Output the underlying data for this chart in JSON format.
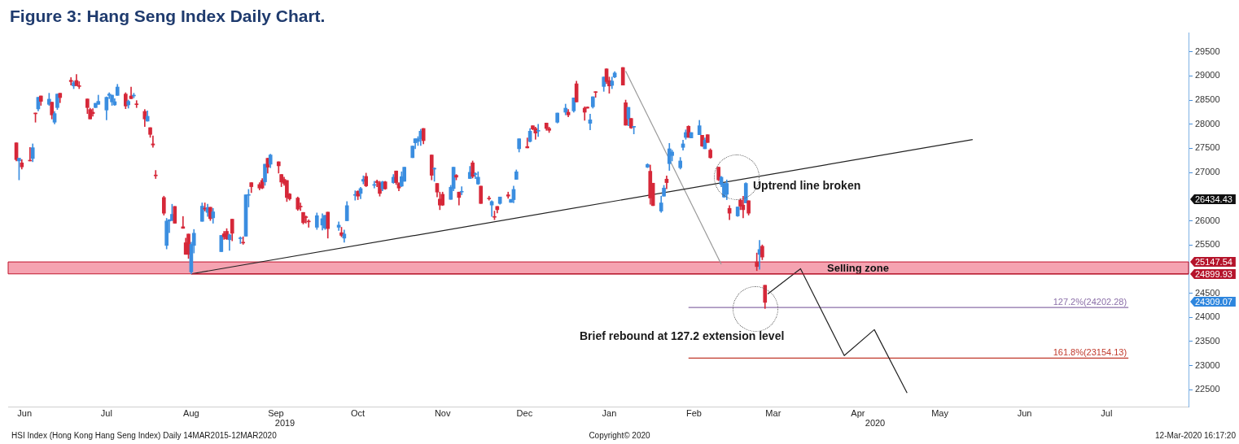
{
  "chart_data": {
    "type": "candlestick",
    "title": "Figure 3: Hang Seng Index Daily Chart.",
    "x": [
      "2019-06-12",
      "2019-06-13",
      "2019-06-14",
      "2019-06-17",
      "2019-06-18",
      "2019-06-19",
      "2019-06-20",
      "2019-06-21",
      "2019-06-24",
      "2019-06-25",
      "2019-06-26",
      "2019-06-27",
      "2019-06-28",
      "2019-07-02",
      "2019-07-03",
      "2019-07-04",
      "2019-07-05",
      "2019-07-08",
      "2019-07-09",
      "2019-07-10",
      "2019-07-11",
      "2019-07-12",
      "2019-07-15",
      "2019-07-16",
      "2019-07-17",
      "2019-07-18",
      "2019-07-19",
      "2019-07-22",
      "2019-07-23",
      "2019-07-24",
      "2019-07-25",
      "2019-07-26",
      "2019-07-29",
      "2019-07-30",
      "2019-07-31",
      "2019-08-01",
      "2019-08-02",
      "2019-08-05",
      "2019-08-06",
      "2019-08-07",
      "2019-08-08",
      "2019-08-09",
      "2019-08-12",
      "2019-08-13",
      "2019-08-14",
      "2019-08-15",
      "2019-08-16",
      "2019-08-19",
      "2019-08-20",
      "2019-08-21",
      "2019-08-22",
      "2019-08-23",
      "2019-08-26",
      "2019-08-27",
      "2019-08-28",
      "2019-08-29",
      "2019-08-30",
      "2019-09-02",
      "2019-09-03",
      "2019-09-04",
      "2019-09-05",
      "2019-09-06",
      "2019-09-09",
      "2019-09-10",
      "2019-09-11",
      "2019-09-12",
      "2019-09-13",
      "2019-09-16",
      "2019-09-17",
      "2019-09-18",
      "2019-09-19",
      "2019-09-20",
      "2019-09-23",
      "2019-09-24",
      "2019-09-25",
      "2019-09-26",
      "2019-09-27",
      "2019-09-30",
      "2019-10-02",
      "2019-10-03",
      "2019-10-04",
      "2019-10-08",
      "2019-10-09",
      "2019-10-10",
      "2019-10-11",
      "2019-10-14",
      "2019-10-15",
      "2019-10-16",
      "2019-10-17",
      "2019-10-18",
      "2019-10-21",
      "2019-10-22",
      "2019-10-23",
      "2019-10-24",
      "2019-10-25",
      "2019-10-28",
      "2019-10-29",
      "2019-10-30",
      "2019-10-31",
      "2019-11-01",
      "2019-11-04",
      "2019-11-05",
      "2019-11-06",
      "2019-11-07",
      "2019-11-08",
      "2019-11-11",
      "2019-11-12",
      "2019-11-13",
      "2019-11-14",
      "2019-11-15",
      "2019-11-18",
      "2019-11-19",
      "2019-11-20",
      "2019-11-21",
      "2019-11-22",
      "2019-11-25",
      "2019-11-26",
      "2019-11-27",
      "2019-11-28",
      "2019-11-29",
      "2019-12-02",
      "2019-12-03",
      "2019-12-04",
      "2019-12-05",
      "2019-12-06",
      "2019-12-09",
      "2019-12-10",
      "2019-12-11",
      "2019-12-12",
      "2019-12-13",
      "2019-12-16",
      "2019-12-17",
      "2019-12-18",
      "2019-12-19",
      "2019-12-20",
      "2019-12-23",
      "2019-12-24",
      "2019-12-27",
      "2019-12-30",
      "2019-12-31",
      "2020-01-02",
      "2020-01-03",
      "2020-01-06",
      "2020-01-07",
      "2020-01-08",
      "2020-01-09",
      "2020-01-10",
      "2020-01-13",
      "2020-01-14",
      "2020-01-15",
      "2020-01-16",
      "2020-01-17",
      "2020-01-20",
      "2020-01-21",
      "2020-01-22",
      "2020-01-23",
      "2020-01-24",
      "2020-01-29",
      "2020-01-30",
      "2020-01-31",
      "2020-02-03",
      "2020-02-04",
      "2020-02-05",
      "2020-02-06",
      "2020-02-07",
      "2020-02-10",
      "2020-02-11",
      "2020-02-12",
      "2020-02-13",
      "2020-02-14",
      "2020-02-17",
      "2020-02-18",
      "2020-02-19",
      "2020-02-20",
      "2020-02-21",
      "2020-02-24",
      "2020-02-25",
      "2020-02-26",
      "2020-02-27",
      "2020-02-28",
      "2020-03-02",
      "2020-03-03",
      "2020-03-04",
      "2020-03-05",
      "2020-03-06",
      "2020-03-09",
      "2020-03-10",
      "2020-03-11",
      "2020-03-12"
    ],
    "ohlc": [
      [
        27615,
        27615,
        27239,
        27267
      ],
      [
        27239,
        27296,
        26847,
        27296
      ],
      [
        27200,
        27267,
        27071,
        27116
      ],
      [
        27256,
        27520,
        27239,
        27239
      ],
      [
        27290,
        27593,
        27223,
        27514
      ],
      [
        28232,
        28232,
        28042,
        28216
      ],
      [
        28317,
        28558,
        28277,
        28558
      ],
      [
        28586,
        28586,
        28390,
        28474
      ],
      [
        28412,
        28642,
        28390,
        28519
      ],
      [
        28457,
        28457,
        28109,
        28193
      ],
      [
        28042,
        28266,
        28008,
        28221
      ],
      [
        28345,
        28625,
        28305,
        28625
      ],
      [
        28642,
        28642,
        28446,
        28552
      ],
      [
        28911,
        28967,
        28810,
        28883
      ],
      [
        28793,
        28894,
        28737,
        28861
      ],
      [
        28906,
        29029,
        28799,
        28799
      ],
      [
        28799,
        28883,
        28737,
        28782
      ],
      [
        28524,
        28524,
        28221,
        28345
      ],
      [
        28305,
        28333,
        28109,
        28109
      ],
      [
        28249,
        28322,
        28165,
        28221
      ],
      [
        28345,
        28434,
        28345,
        28434
      ],
      [
        28412,
        28603,
        28412,
        28474
      ],
      [
        28294,
        28569,
        28092,
        28558
      ],
      [
        28597,
        28653,
        28530,
        28625
      ],
      [
        28462,
        28603,
        28390,
        28603
      ],
      [
        28401,
        28530,
        28390,
        28468
      ],
      [
        28597,
        28827,
        28597,
        28771
      ],
      [
        28625,
        28653,
        28322,
        28378
      ],
      [
        28401,
        28502,
        28333,
        28474
      ],
      [
        28586,
        28771,
        28530,
        28530
      ],
      [
        28586,
        28642,
        28547,
        28603
      ],
      [
        28417,
        28490,
        28345,
        28406
      ],
      [
        28266,
        28305,
        27952,
        28109
      ],
      [
        28064,
        28277,
        28064,
        28165
      ],
      [
        27929,
        27929,
        27728,
        27789
      ],
      [
        27593,
        27761,
        27520,
        27570
      ],
      [
        26948,
        27043,
        26875,
        26931
      ],
      [
        26482,
        26510,
        26117,
        26157
      ],
      [
        25489,
        26050,
        25416,
        25994
      ],
      [
        25994,
        26022,
        25753,
        26022
      ],
      [
        26005,
        26342,
        26005,
        26134
      ],
      [
        26297,
        26297,
        25949,
        25949
      ],
      [
        25876,
        26089,
        25843,
        25843
      ],
      [
        25545,
        25641,
        25304,
        25304
      ],
      [
        25725,
        25725,
        25220,
        25304
      ],
      [
        24939,
        25556,
        24900,
        25512
      ],
      [
        25489,
        25820,
        25332,
        25742
      ],
      [
        25988,
        26370,
        25988,
        26303
      ],
      [
        26263,
        26370,
        26201,
        26241
      ],
      [
        26173,
        26342,
        26089,
        26274
      ],
      [
        26280,
        26280,
        26005,
        26044
      ],
      [
        26061,
        26257,
        25949,
        26185
      ],
      [
        25360,
        25697,
        25360,
        25697
      ],
      [
        25730,
        25781,
        25612,
        25668
      ],
      [
        25781,
        25837,
        25612,
        25624
      ],
      [
        25607,
        25725,
        25388,
        25708
      ],
      [
        26033,
        26033,
        25584,
        25741
      ],
      [
        25629,
        25668,
        25528,
        25640
      ],
      [
        25551,
        25668,
        25511,
        25539
      ],
      [
        25680,
        26538,
        25680,
        26538
      ],
      [
        26527,
        26650,
        26286,
        26538
      ],
      [
        26790,
        26790,
        26583,
        26706
      ],
      [
        26751,
        26790,
        26639,
        26678
      ],
      [
        26835,
        26875,
        26661,
        26678
      ],
      [
        26807,
        27172,
        26734,
        27172
      ],
      [
        27295,
        27295,
        26987,
        27110
      ],
      [
        27172,
        27380,
        27099,
        27363
      ],
      [
        27222,
        27222,
        26987,
        27138
      ],
      [
        26959,
        26959,
        26706,
        26802
      ],
      [
        26858,
        26903,
        26734,
        26774
      ],
      [
        26835,
        26835,
        26398,
        26482
      ],
      [
        26555,
        26566,
        26426,
        26454
      ],
      [
        26471,
        26493,
        26213,
        26241
      ],
      [
        26297,
        26370,
        26213,
        26286
      ],
      [
        26173,
        26173,
        25932,
        25960
      ],
      [
        26084,
        26100,
        25949,
        26067
      ],
      [
        25988,
        26022,
        25865,
        25977
      ],
      [
        25865,
        26162,
        25820,
        26106
      ],
      [
        25910,
        26145,
        25809,
        26044
      ],
      [
        25848,
        26112,
        25820,
        26112
      ],
      [
        26179,
        26179,
        25640,
        25837
      ],
      [
        25865,
        25977,
        25797,
        25910
      ],
      [
        25753,
        25865,
        25668,
        25697
      ],
      [
        25640,
        25809,
        25556,
        25725
      ],
      [
        26000,
        26398,
        26000,
        26314
      ],
      [
        26527,
        26622,
        26426,
        26538
      ],
      [
        26611,
        26622,
        26437,
        26510
      ],
      [
        26566,
        26695,
        26454,
        26667
      ],
      [
        26818,
        26931,
        26762,
        26858
      ],
      [
        26919,
        26987,
        26706,
        26723
      ],
      [
        26734,
        26818,
        26678,
        26751
      ],
      [
        26818,
        26846,
        26706,
        26790
      ],
      [
        26785,
        26818,
        26510,
        26566
      ],
      [
        26661,
        26818,
        26622,
        26807
      ],
      [
        26807,
        26818,
        26650,
        26661
      ],
      [
        26790,
        26959,
        26774,
        26903
      ],
      [
        27032,
        27032,
        26751,
        26790
      ],
      [
        26774,
        26790,
        26622,
        26678
      ],
      [
        26718,
        27015,
        26706,
        26914
      ],
      [
        26818,
        27110,
        26818,
        27110
      ],
      [
        27307,
        27548,
        27307,
        27548
      ],
      [
        27615,
        27699,
        27492,
        27699
      ],
      [
        27643,
        27744,
        27559,
        27699
      ],
      [
        27699,
        27896,
        27559,
        27856
      ],
      [
        27912,
        27912,
        27593,
        27660
      ],
      [
        27363,
        27363,
        26847,
        26942
      ],
      [
        27071,
        27099,
        26818,
        27082
      ],
      [
        26774,
        26774,
        26493,
        26594
      ],
      [
        26448,
        26594,
        26229,
        26325
      ],
      [
        26549,
        26594,
        26314,
        26325
      ],
      [
        26443,
        26734,
        26443,
        26695
      ],
      [
        26667,
        27110,
        26622,
        27110
      ],
      [
        26942,
        26959,
        26847,
        26903
      ],
      [
        26594,
        26594,
        26325,
        26482
      ],
      [
        26594,
        26706,
        26538,
        26605
      ],
      [
        26875,
        27127,
        26875,
        27004
      ],
      [
        27200,
        27239,
        26886,
        26919
      ],
      [
        26959,
        26998,
        26875,
        26976
      ],
      [
        26762,
        27015,
        26751,
        26903
      ],
      [
        26718,
        26718,
        26358,
        26358
      ],
      [
        26471,
        26510,
        26426,
        26454
      ],
      [
        26325,
        26415,
        26089,
        26398
      ],
      [
        26089,
        26201,
        26022,
        26072
      ],
      [
        26297,
        26297,
        26162,
        26229
      ],
      [
        26358,
        26493,
        26342,
        26493
      ],
      [
        26538,
        26594,
        26465,
        26510
      ],
      [
        26381,
        26443,
        26381,
        26443
      ],
      [
        26437,
        26718,
        26370,
        26650
      ],
      [
        26858,
        27054,
        26858,
        27015
      ],
      [
        27492,
        27699,
        27424,
        27699
      ],
      [
        27537,
        27716,
        27509,
        27509
      ],
      [
        27643,
        27912,
        27632,
        27856
      ],
      [
        27969,
        27969,
        27884,
        27901
      ],
      [
        27912,
        27941,
        27688,
        27817
      ],
      [
        27856,
        27997,
        27744,
        27873
      ],
      [
        28025,
        28025,
        27873,
        27912
      ],
      [
        27912,
        27941,
        27828,
        27873
      ],
      [
        28041,
        28232,
        28024,
        28232
      ],
      [
        28249,
        28417,
        28193,
        28333
      ],
      [
        28249,
        28305,
        28154,
        28193
      ],
      [
        28277,
        28546,
        28249,
        28546
      ],
      [
        28838,
        28894,
        28462,
        28462
      ],
      [
        28333,
        28361,
        28081,
        28249
      ],
      [
        28356,
        28361,
        28333,
        28333
      ],
      [
        28019,
        28210,
        27884,
        28092
      ],
      [
        28361,
        28569,
        28333,
        28569
      ],
      [
        28675,
        28675,
        28558,
        28658
      ],
      [
        28782,
        28978,
        28681,
        28978
      ],
      [
        29147,
        29147,
        28838,
        28883
      ],
      [
        28905,
        28978,
        28642,
        28793
      ],
      [
        28804,
        28978,
        28737,
        28894
      ],
      [
        28978,
        29090,
        28961,
        29062
      ],
      [
        29175,
        29175,
        28810,
        28810
      ],
      [
        28445,
        28501,
        27980,
        27980
      ],
      [
        28109,
        28350,
        27968,
        28350
      ],
      [
        28120,
        28120,
        27912,
        27924
      ],
      [
        27940,
        27957,
        27800,
        27957
      ],
      [
        27110,
        27183,
        27099,
        27166
      ],
      [
        27026,
        27155,
        26342,
        26471
      ],
      [
        26779,
        26779,
        26314,
        26314
      ],
      [
        26201,
        26510,
        26173,
        26370
      ],
      [
        26510,
        26734,
        26510,
        26678
      ],
      [
        26863,
        26931,
        26661,
        26790
      ],
      [
        27183,
        27604,
        27043,
        27491
      ],
      [
        27351,
        27463,
        27239,
        27424
      ],
      [
        27099,
        27312,
        27071,
        27239
      ],
      [
        27520,
        27671,
        27464,
        27593
      ],
      [
        27727,
        27884,
        27688,
        27828
      ],
      [
        27957,
        27969,
        27727,
        27727
      ],
      [
        27716,
        27828,
        27716,
        27828
      ],
      [
        27783,
        28081,
        27783,
        27969
      ],
      [
        27772,
        27772,
        27537,
        27548
      ],
      [
        27492,
        27716,
        27492,
        27671
      ],
      [
        27783,
        27783,
        27621,
        27621
      ],
      [
        27464,
        27492,
        27295,
        27307
      ],
      [
        27110,
        27110,
        26830,
        26847
      ],
      [
        26751,
        26919,
        26706,
        26903
      ],
      [
        26493,
        26774,
        26482,
        26774
      ],
      [
        26549,
        26847,
        26437,
        26774
      ],
      [
        26257,
        26314,
        26022,
        26157
      ],
      [
        26100,
        26286,
        26089,
        26286
      ],
      [
        26426,
        26454,
        26229,
        26302
      ],
      [
        26325,
        26510,
        26061,
        26229
      ],
      [
        26370,
        26790,
        26370,
        26774
      ],
      [
        26415,
        26415,
        26117,
        26157
      ],
      [
        25147,
        25332,
        24967,
        25051
      ],
      [
        25304,
        25595,
        24995,
        25405
      ],
      [
        25472,
        25500,
        25192,
        25248
      ],
      [
        24664,
        24664,
        24182,
        24309
      ]
    ],
    "colors": [
      "#d62839",
      "#3b8ee0",
      "#d62839",
      "#d62839",
      "#3b8ee0",
      "#d62839",
      "#3b8ee0",
      "#d62839",
      "#3b8ee0",
      "#d62839",
      "#3b8ee0",
      "#3b8ee0",
      "#d62839",
      "#d62839",
      "#3b8ee0",
      "#d62839",
      "#d62839",
      "#d62839",
      "#d62839",
      "#d62839",
      "#3b8ee0",
      "#3b8ee0",
      "#3b8ee0",
      "#3b8ee0",
      "#3b8ee0",
      "#3b8ee0",
      "#3b8ee0",
      "#d62839",
      "#3b8ee0",
      "#d62839",
      "#3b8ee0",
      "#d62839",
      "#d62839",
      "#3b8ee0",
      "#d62839",
      "#d62839",
      "#d62839",
      "#d62839",
      "#3b8ee0",
      "#3b8ee0",
      "#3b8ee0",
      "#d62839",
      "#d62839",
      "#d62839",
      "#d62839",
      "#3b8ee0",
      "#3b8ee0",
      "#3b8ee0",
      "#d62839",
      "#3b8ee0",
      "#d62839",
      "#3b8ee0",
      "#3b8ee0",
      "#d62839",
      "#d62839",
      "#3b8ee0",
      "#d62839",
      "#3b8ee0",
      "#d62839",
      "#3b8ee0",
      "#3b8ee0",
      "#d62839",
      "#d62839",
      "#d62839",
      "#3b8ee0",
      "#d62839",
      "#3b8ee0",
      "#d62839",
      "#d62839",
      "#d62839",
      "#d62839",
      "#d62839",
      "#d62839",
      "#d62839",
      "#d62839",
      "#d62839",
      "#d62839",
      "#3b8ee0",
      "#3b8ee0",
      "#3b8ee0",
      "#d62839",
      "#3b8ee0",
      "#d62839",
      "#3b8ee0",
      "#3b8ee0",
      "#3b8ee0",
      "#d62839",
      "#3b8ee0",
      "#3b8ee0",
      "#d62839",
      "#3b8ee0",
      "#d62839",
      "#d62839",
      "#3b8ee0",
      "#d62839",
      "#3b8ee0",
      "#d62839",
      "#d62839",
      "#3b8ee0",
      "#3b8ee0",
      "#3b8ee0",
      "#3b8ee0",
      "#3b8ee0",
      "#3b8ee0",
      "#d62839",
      "#d62839",
      "#3b8ee0",
      "#d62839",
      "#d62839",
      "#d62839",
      "#3b8ee0",
      "#3b8ee0",
      "#d62839",
      "#d62839",
      "#3b8ee0",
      "#3b8ee0",
      "#d62839",
      "#3b8ee0",
      "#3b8ee0",
      "#d62839",
      "#d62839",
      "#3b8ee0",
      "#d62839",
      "#d62839",
      "#3b8ee0",
      "#d62839",
      "#3b8ee0",
      "#3b8ee0",
      "#3b8ee0",
      "#3b8ee0",
      "#d62839",
      "#3b8ee0",
      "#d62839",
      "#d62839",
      "#3b8ee0",
      "#d62839",
      "#d62839",
      "#3b8ee0",
      "#3b8ee0",
      "#d62839",
      "#3b8ee0",
      "#d62839",
      "#d62839",
      "#d62839",
      "#3b8ee0",
      "#3b8ee0",
      "#d62839",
      "#3b8ee0",
      "#d62839",
      "#d62839",
      "#3b8ee0",
      "#3b8ee0",
      "#d62839",
      "#d62839",
      "#3b8ee0",
      "#d62839",
      "#3b8ee0",
      "#3b8ee0",
      "#d62839",
      "#d62839",
      "#3b8ee0",
      "#3b8ee0",
      "#d62839",
      "#3b8ee0",
      "#3b8ee0",
      "#3b8ee0",
      "#3b8ee0",
      "#3b8ee0",
      "#d62839",
      "#3b8ee0",
      "#3b8ee0",
      "#d62839",
      "#3b8ee0",
      "#d62839",
      "#d62839",
      "#d62839",
      "#3b8ee0",
      "#3b8ee0",
      "#3b8ee0",
      "#d62839",
      "#3b8ee0",
      "#d62839",
      "#d62839",
      "#3b8ee0",
      "#d62839",
      "#d62839",
      "#3b8ee0",
      "#d62839",
      "#d62839"
    ],
    "series": [
      {
        "type": "line",
        "color": "#b5142b",
        "x": [
          "2019-08-15",
          "2020-08-14"
        ],
        "values": [
          24899.93,
          24899.93
        ]
      },
      {
        "type": "line",
        "color": "#222222",
        "x": [
          "2019-08-15",
          "2020-05-27"
        ],
        "values": [
          24899.93,
          27682
        ]
      },
      {
        "type": "line",
        "color": "#9a9a9a",
        "x": [
          "2020-01-21",
          "2020-02-25"
        ],
        "values": [
          29100,
          25100
        ]
      },
      {
        "type": "line",
        "color": "#222222",
        "x": [
          "2020-03-13",
          "2020-03-25",
          "2020-04-10",
          "2020-04-21",
          "2020-05-03"
        ],
        "values": [
          24485,
          25006,
          23206,
          23744,
          22432
        ]
      },
      {
        "type": "line",
        "name": "127.2%(24202.28)",
        "color": "#8b6fa8",
        "x": [
          "2020-02-13",
          "2020-07-23"
        ],
        "values": [
          24202.28,
          24202.28
        ]
      },
      {
        "type": "line",
        "name": "161.8%(23154.13)",
        "color": "#c0392b",
        "x": [
          "2020-02-13",
          "2020-07-23"
        ],
        "values": [
          23154.13,
          23154.13
        ]
      }
    ],
    "xlim": [
      "2019-06-09",
      "2020-08-14"
    ],
    "xticks": [
      {
        "value": "2019-06-15",
        "label": "Jun"
      },
      {
        "value": "2019-07-15",
        "label": "Jul"
      },
      {
        "value": "2019-08-15",
        "label": "Aug"
      },
      {
        "value": "2019-09-15",
        "label": "Sep"
      },
      {
        "value": "2019-10-15",
        "label": "Oct"
      },
      {
        "value": "2019-11-15",
        "label": "Nov"
      },
      {
        "value": "2019-12-15",
        "label": "Dec"
      },
      {
        "value": "2020-01-15",
        "label": "Jan"
      },
      {
        "value": "2020-02-15",
        "label": "Feb"
      },
      {
        "value": "2020-03-15",
        "label": "Mar"
      },
      {
        "value": "2020-04-15",
        "label": "Apr"
      },
      {
        "value": "2020-05-15",
        "label": "May"
      },
      {
        "value": "2020-06-15",
        "label": "Jun"
      },
      {
        "value": "2020-07-15",
        "label": "Jul"
      }
    ],
    "bands": [
      {
        "axis": "y",
        "from": 24899.93,
        "to": 25147.54,
        "label": "Selling zone",
        "color": "#f5a3b1"
      }
    ],
    "ylim": [
      22150,
      29900
    ],
    "yticks": [
      22500,
      23000,
      23500,
      24000,
      24500,
      25500,
      26000,
      27000,
      27500,
      28000,
      28500,
      29000,
      29500
    ],
    "annotations": [
      "Uptrend line broken",
      "Brief rebound at 127.2 extension level",
      "26434.43",
      "25147.54",
      "24899.93",
      "24309.07",
      "2019",
      "2020",
      "HSI Index (Hong Kong Hang Seng Index) Daily 14MAR2015-12MAR2020",
      "Copyright© 2020",
      "12-Mar-2020 16:17:20"
    ]
  }
}
